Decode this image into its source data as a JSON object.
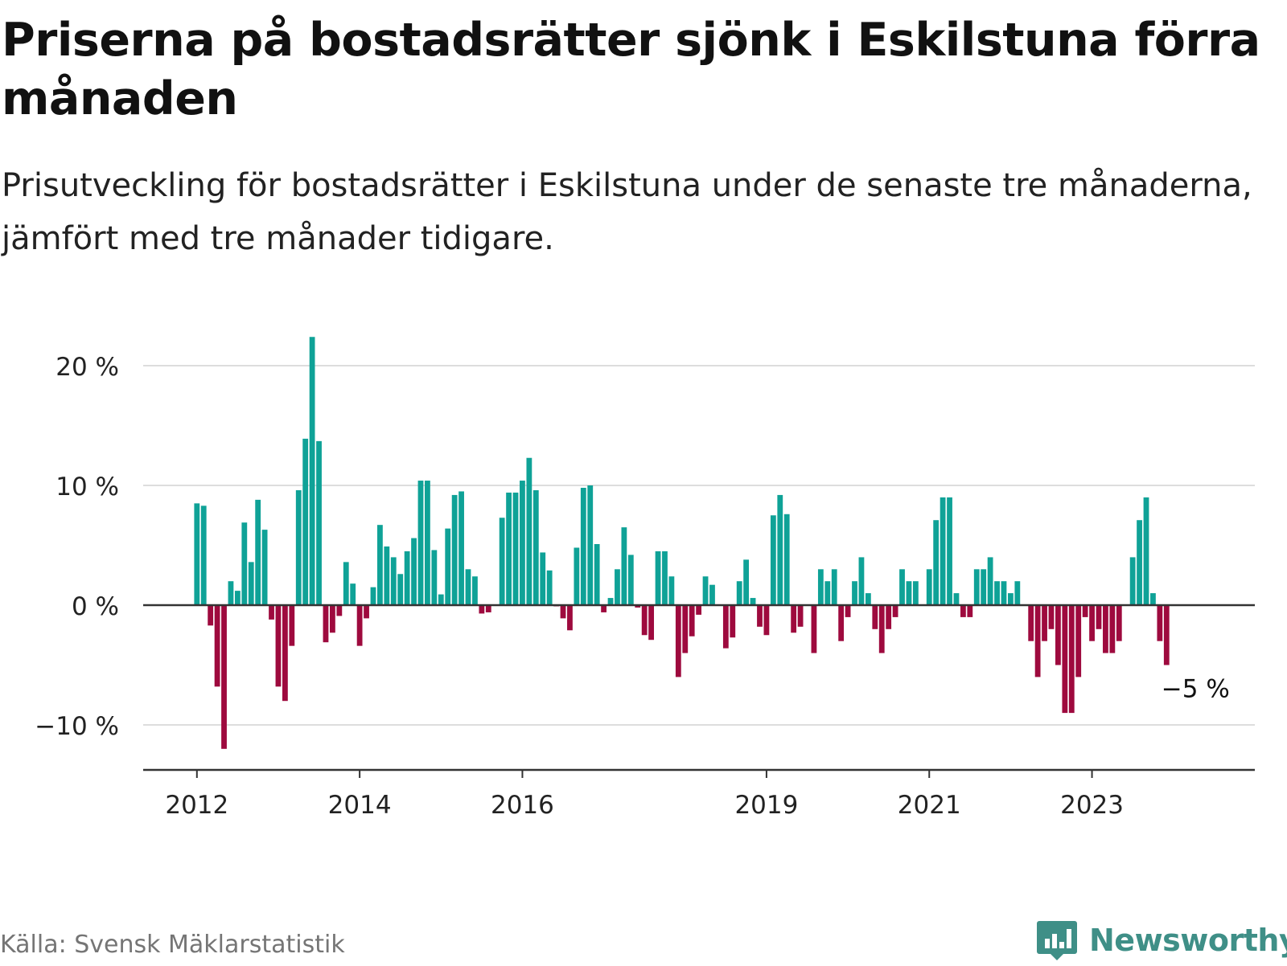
{
  "title": "Priserna på bostadsrätter sjönk i Eskilstuna förra månaden",
  "subtitle": "Prisutveckling för bostadsrätter i Eskilstuna under de senaste tre månaderna, jämfört med tre månader tidigare.",
  "source": "Källa: Svensk Mäklarstatistik",
  "logo_text": "Newsworthy",
  "colors": {
    "positive": "#0fa297",
    "negative": "#9e0a3e",
    "grid": "#dddddd",
    "axis": "#333333",
    "text": "#222222"
  },
  "chart_data": {
    "type": "bar",
    "title": "Priserna på bostadsrätter sjönk i Eskilstuna förra månaden",
    "xlabel": "",
    "ylabel": "",
    "unit": "%",
    "x_start": "2012-01",
    "ylim": [
      -14,
      24
    ],
    "yticks": [
      -10,
      0,
      10,
      20
    ],
    "ytick_labels": [
      "−10 %",
      "0 %",
      "10 %",
      "20 %"
    ],
    "xtick_dates": [
      "2012-01",
      "2014-01",
      "2016-01",
      "2019-01",
      "2021-01",
      "2023-01"
    ],
    "xtick_labels": [
      "2012",
      "2014",
      "2016",
      "2019",
      "2021",
      "2023"
    ],
    "grid": true,
    "last_value_label": "−5 %",
    "values": [
      8.5,
      8.3,
      -1.7,
      -6.8,
      -12,
      2,
      1.2,
      6.9,
      3.6,
      8.8,
      6.3,
      -1.2,
      -6.8,
      -8,
      -3.4,
      9.6,
      13.9,
      22.4,
      13.7,
      -3.1,
      -2.3,
      -0.9,
      3.6,
      1.8,
      -3.4,
      -1.1,
      1.5,
      6.7,
      4.9,
      4,
      2.6,
      4.5,
      5.6,
      10.4,
      10.4,
      4.6,
      0.9,
      6.4,
      9.2,
      9.5,
      3,
      2.4,
      -0.7,
      -0.6,
      0,
      7.3,
      9.4,
      9.4,
      10.4,
      12.3,
      9.6,
      4.4,
      2.9,
      -0.1,
      -1.1,
      -2.1,
      4.8,
      9.8,
      10,
      5.1,
      -0.6,
      0.6,
      3,
      6.5,
      4.2,
      -0.2,
      -2.5,
      -2.9,
      4.5,
      4.5,
      2.4,
      -6,
      -4,
      -2.6,
      -0.8,
      2.4,
      1.7,
      0,
      -3.6,
      -2.7,
      2,
      3.8,
      0.6,
      -1.8,
      -2.5,
      7.5,
      9.2,
      7.6,
      -2.3,
      -1.8,
      0,
      -4,
      3,
      2,
      3,
      -3,
      -1,
      2,
      4,
      1,
      -2,
      -4,
      -2,
      -1,
      3,
      2,
      2,
      0,
      3,
      7.1,
      9,
      9,
      1,
      -1,
      -1,
      3,
      3,
      4,
      2,
      2,
      1,
      2,
      0,
      -3,
      -6,
      -3,
      -2,
      -5,
      -9,
      -9,
      -6,
      -1,
      -3,
      -2,
      -4,
      -4,
      -3,
      0,
      4,
      7.1,
      9,
      1,
      -3,
      -5
    ]
  }
}
